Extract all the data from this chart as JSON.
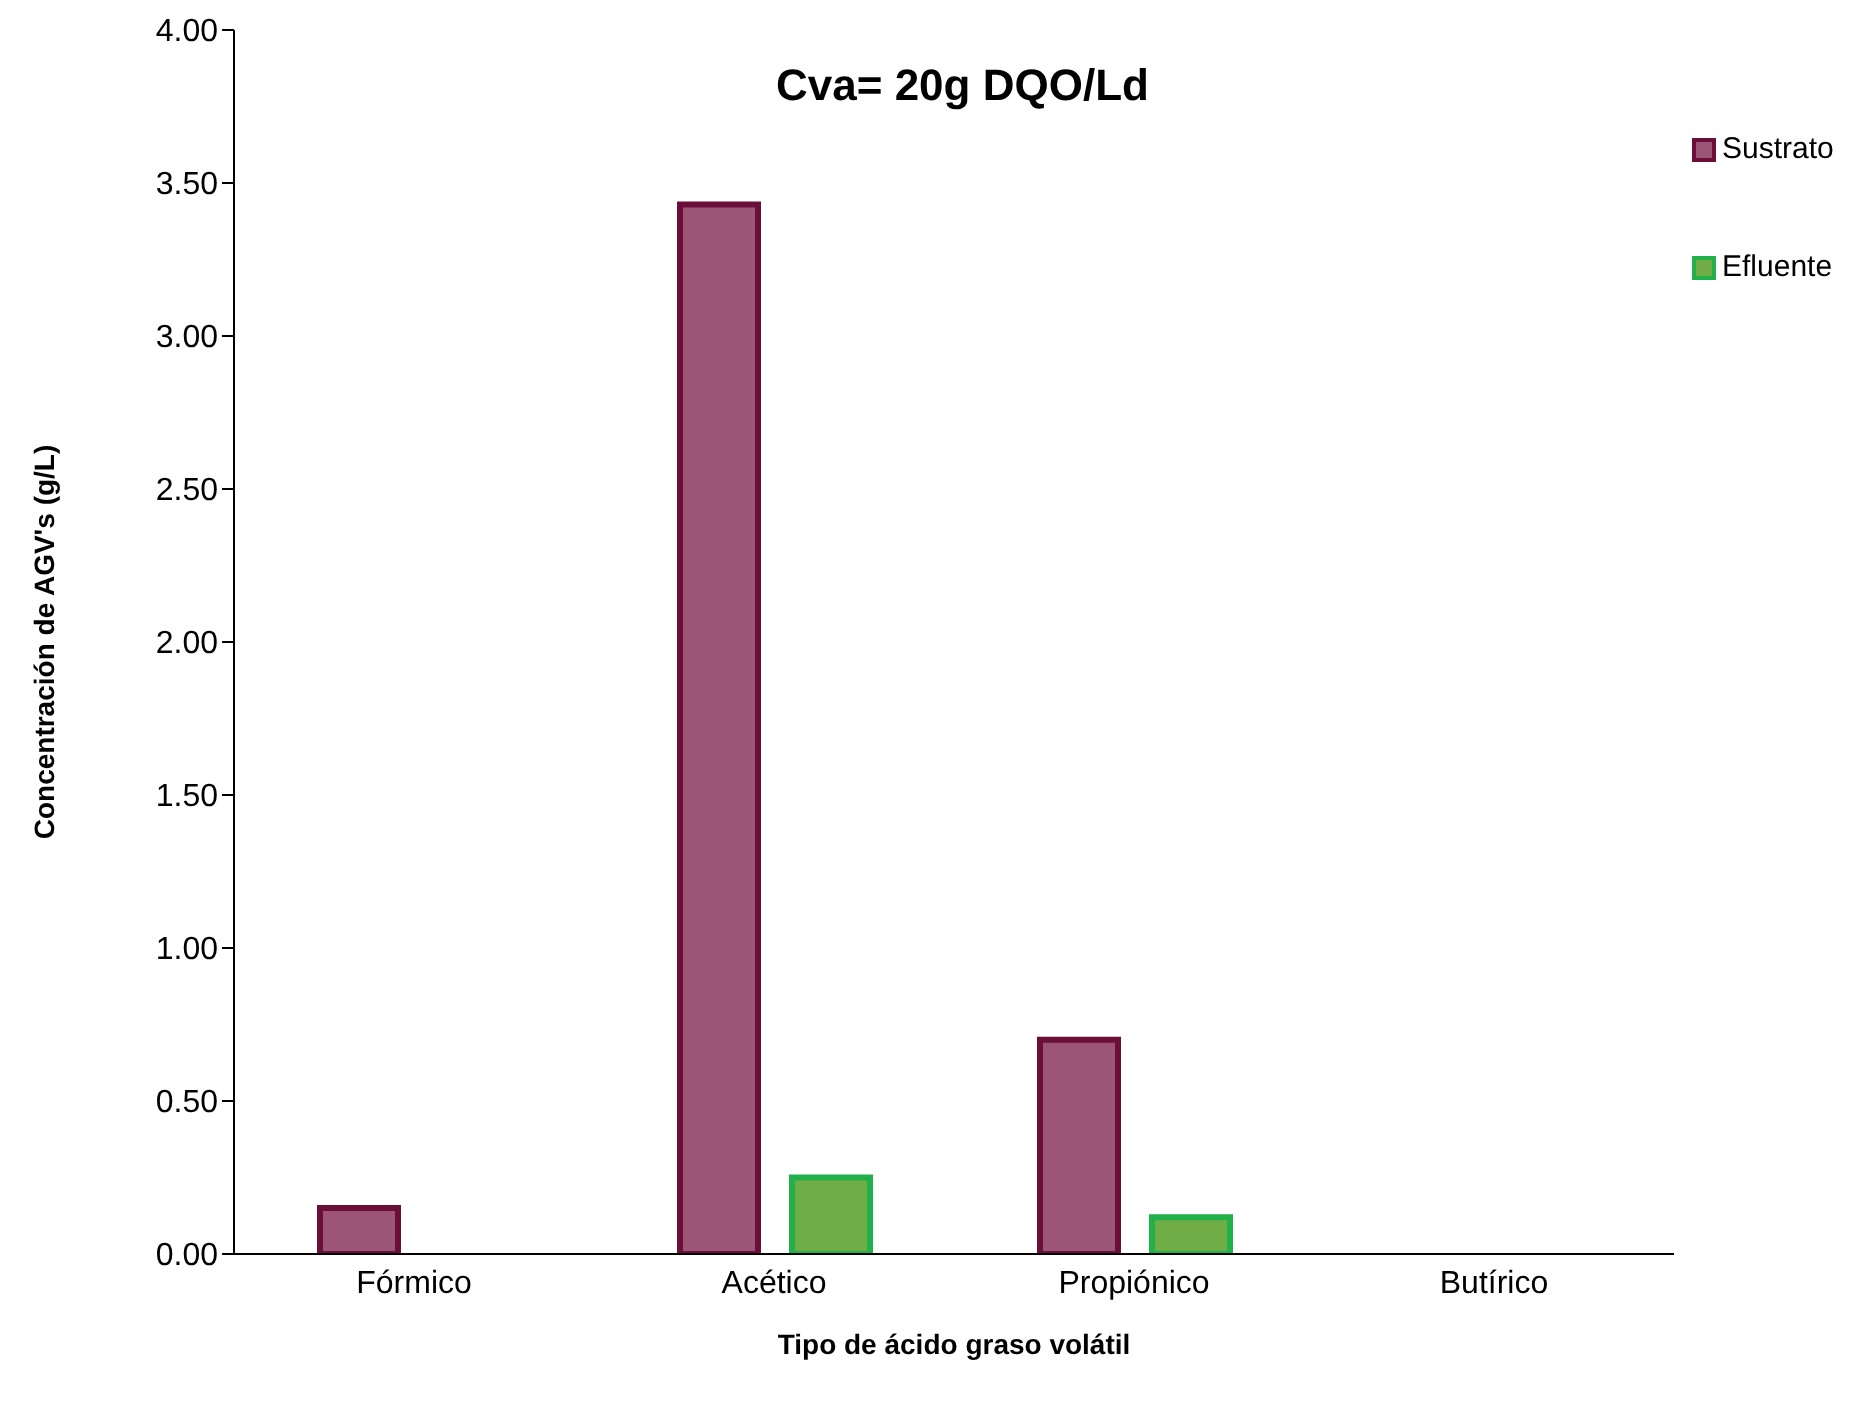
{
  "chart_data": {
    "type": "bar",
    "title": "Cva= 20g DQO/Ld",
    "xlabel": "Tipo de ácido graso volátil",
    "ylabel": "Concentración de AGV's (g/L)",
    "categories": [
      "Fórmico",
      "Acético",
      "Propiónico",
      "Butírico"
    ],
    "series": [
      {
        "name": "Sustrato",
        "color": "#9b5577",
        "values": [
          0.15,
          3.43,
          0.7,
          null
        ]
      },
      {
        "name": "Efluente",
        "color": "#70ad47",
        "values": [
          null,
          0.25,
          0.12,
          null
        ]
      }
    ],
    "ylim": [
      0,
      4
    ],
    "yticks": [
      {
        "value": 0,
        "label": "0.00"
      },
      {
        "value": 0.5,
        "label": "0.50"
      },
      {
        "value": 1,
        "label": "1.00"
      },
      {
        "value": 1.5,
        "label": "1.50"
      },
      {
        "value": 2,
        "label": "2.00"
      },
      {
        "value": 2.5,
        "label": "2.50"
      },
      {
        "value": 3,
        "label": "3.00"
      },
      {
        "value": 3.5,
        "label": "3.50"
      },
      {
        "value": 4,
        "label": "4.00"
      }
    ],
    "grid": false,
    "legend": "top right"
  }
}
